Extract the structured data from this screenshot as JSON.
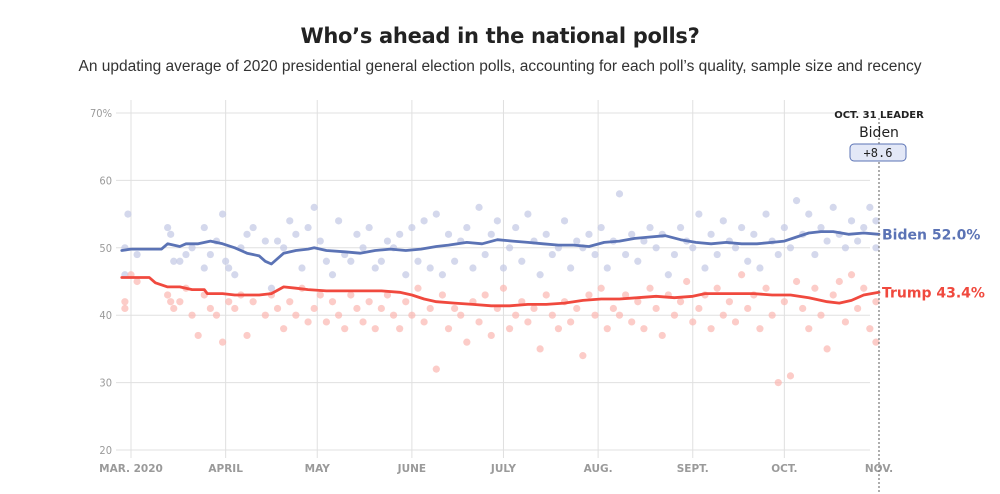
{
  "chart_data": {
    "type": "line",
    "title": "Who’s ahead in the national polls?",
    "subtitle": "An updating average of 2020 presidential general election polls, accounting for each poll’s quality, sample size and recency",
    "xlabel": "",
    "ylabel": "",
    "ylim": [
      20,
      70
    ],
    "grid": true,
    "y_ticks": [
      "70%",
      "60",
      "50",
      "40",
      "30",
      "20"
    ],
    "y_tick_values": [
      70,
      60,
      50,
      40,
      30,
      20
    ],
    "x_ticks": [
      "MAR. 2020",
      "APRIL",
      "MAY",
      "JUNE",
      "JULY",
      "AUG.",
      "SEPT.",
      "OCT.",
      "NOV."
    ],
    "x_tick_days": [
      0,
      31,
      61,
      92,
      122,
      153,
      184,
      214,
      245
    ],
    "x_unit": "days since Mar. 1, 2020",
    "leader": {
      "heading": "OCT. 31 LEADER",
      "name": "Biden",
      "margin": "+8.6"
    },
    "series": [
      {
        "name": "Biden",
        "end_label": "Biden 52.0%",
        "color": "#5b73b5",
        "dot_color": "#c5cbe6",
        "days": [
          -3,
          0,
          10,
          12,
          16,
          18,
          22,
          26,
          30,
          34,
          36,
          38,
          42,
          44,
          46,
          50,
          54,
          58,
          60,
          64,
          70,
          75,
          80,
          85,
          90,
          95,
          100,
          104,
          110,
          115,
          120,
          125,
          130,
          135,
          140,
          145,
          150,
          155,
          160,
          165,
          170,
          175,
          180,
          185,
          190,
          195,
          200,
          205,
          210,
          214,
          218,
          222,
          226,
          230,
          235,
          240,
          245
        ],
        "values": [
          49.6,
          49.8,
          49.8,
          50.6,
          50.2,
          50.6,
          50.6,
          51.0,
          50.6,
          50.0,
          49.6,
          49.2,
          48.8,
          48.0,
          47.6,
          49.2,
          49.6,
          49.8,
          50.0,
          49.6,
          49.4,
          49.2,
          49.6,
          49.8,
          49.6,
          49.8,
          50.2,
          50.4,
          50.8,
          50.6,
          51.2,
          51.0,
          50.8,
          50.6,
          50.4,
          50.4,
          50.2,
          50.8,
          51.0,
          51.4,
          51.6,
          51.8,
          51.2,
          50.8,
          50.6,
          50.8,
          50.6,
          50.6,
          50.8,
          51.0,
          51.6,
          52.2,
          52.4,
          52.4,
          52.0,
          52.2,
          52.0
        ]
      },
      {
        "name": "Trump",
        "end_label": "Trump 43.4%",
        "color": "#f0493e",
        "dot_color": "#fbb6b1",
        "days": [
          -3,
          0,
          6,
          8,
          12,
          16,
          20,
          24,
          25,
          30,
          34,
          38,
          42,
          46,
          50,
          54,
          58,
          64,
          70,
          76,
          82,
          88,
          92,
          96,
          100,
          106,
          112,
          118,
          124,
          130,
          136,
          142,
          148,
          154,
          160,
          166,
          172,
          178,
          184,
          188,
          192,
          198,
          204,
          210,
          216,
          222,
          228,
          232,
          236,
          240,
          245
        ],
        "values": [
          45.6,
          45.6,
          45.6,
          44.8,
          44.2,
          44.2,
          43.8,
          43.8,
          43.2,
          43.2,
          43.0,
          43.0,
          43.0,
          43.2,
          44.2,
          44.0,
          43.8,
          43.6,
          43.6,
          43.6,
          43.6,
          43.4,
          43.0,
          42.4,
          42.0,
          41.8,
          41.6,
          41.4,
          41.4,
          41.6,
          41.6,
          41.8,
          42.2,
          42.4,
          42.4,
          42.6,
          42.8,
          42.6,
          42.8,
          43.2,
          43.2,
          43.2,
          43.2,
          43.0,
          43.0,
          42.6,
          42.0,
          41.8,
          42.2,
          43.0,
          43.4
        ]
      }
    ],
    "polls_biden": [
      [
        -1,
        55
      ],
      [
        -2,
        50
      ],
      [
        -2,
        46
      ],
      [
        2,
        49
      ],
      [
        12,
        53
      ],
      [
        13,
        52
      ],
      [
        14,
        48
      ],
      [
        16,
        48
      ],
      [
        18,
        49
      ],
      [
        20,
        50
      ],
      [
        24,
        53
      ],
      [
        24,
        47
      ],
      [
        26,
        49
      ],
      [
        28,
        51
      ],
      [
        30,
        55
      ],
      [
        31,
        48
      ],
      [
        32,
        47
      ],
      [
        34,
        46
      ],
      [
        36,
        50
      ],
      [
        38,
        52
      ],
      [
        40,
        53
      ],
      [
        44,
        51
      ],
      [
        46,
        44
      ],
      [
        48,
        51
      ],
      [
        50,
        50
      ],
      [
        52,
        54
      ],
      [
        54,
        52
      ],
      [
        56,
        47
      ],
      [
        58,
        53
      ],
      [
        60,
        56
      ],
      [
        62,
        51
      ],
      [
        64,
        48
      ],
      [
        66,
        46
      ],
      [
        68,
        54
      ],
      [
        70,
        49
      ],
      [
        72,
        48
      ],
      [
        74,
        52
      ],
      [
        76,
        50
      ],
      [
        78,
        53
      ],
      [
        80,
        47
      ],
      [
        82,
        48
      ],
      [
        84,
        51
      ],
      [
        86,
        50
      ],
      [
        88,
        52
      ],
      [
        90,
        46
      ],
      [
        92,
        53
      ],
      [
        94,
        48
      ],
      [
        96,
        54
      ],
      [
        98,
        47
      ],
      [
        100,
        55
      ],
      [
        102,
        46
      ],
      [
        104,
        52
      ],
      [
        106,
        48
      ],
      [
        108,
        51
      ],
      [
        110,
        53
      ],
      [
        112,
        47
      ],
      [
        114,
        56
      ],
      [
        116,
        49
      ],
      [
        118,
        52
      ],
      [
        120,
        54
      ],
      [
        122,
        47
      ],
      [
        124,
        50
      ],
      [
        126,
        53
      ],
      [
        128,
        48
      ],
      [
        130,
        55
      ],
      [
        132,
        51
      ],
      [
        134,
        46
      ],
      [
        136,
        52
      ],
      [
        138,
        49
      ],
      [
        140,
        50
      ],
      [
        142,
        54
      ],
      [
        144,
        47
      ],
      [
        146,
        51
      ],
      [
        148,
        50
      ],
      [
        150,
        52
      ],
      [
        152,
        49
      ],
      [
        154,
        53
      ],
      [
        156,
        47
      ],
      [
        158,
        51
      ],
      [
        160,
        58
      ],
      [
        162,
        49
      ],
      [
        164,
        52
      ],
      [
        166,
        48
      ],
      [
        168,
        51
      ],
      [
        170,
        53
      ],
      [
        172,
        50
      ],
      [
        174,
        52
      ],
      [
        176,
        46
      ],
      [
        178,
        49
      ],
      [
        180,
        53
      ],
      [
        182,
        51
      ],
      [
        184,
        50
      ],
      [
        186,
        55
      ],
      [
        188,
        47
      ],
      [
        190,
        52
      ],
      [
        192,
        49
      ],
      [
        194,
        54
      ],
      [
        196,
        51
      ],
      [
        198,
        50
      ],
      [
        200,
        53
      ],
      [
        202,
        48
      ],
      [
        204,
        52
      ],
      [
        206,
        47
      ],
      [
        208,
        55
      ],
      [
        210,
        51
      ],
      [
        212,
        49
      ],
      [
        214,
        53
      ],
      [
        216,
        50
      ],
      [
        218,
        57
      ],
      [
        220,
        52
      ],
      [
        222,
        55
      ],
      [
        224,
        49
      ],
      [
        226,
        53
      ],
      [
        228,
        51
      ],
      [
        230,
        56
      ],
      [
        232,
        52
      ],
      [
        234,
        50
      ],
      [
        236,
        54
      ],
      [
        238,
        51
      ],
      [
        240,
        53
      ],
      [
        242,
        56
      ],
      [
        244,
        50
      ],
      [
        244,
        54
      ]
    ],
    "polls_trump": [
      [
        -2,
        42
      ],
      [
        -2,
        41
      ],
      [
        0,
        46
      ],
      [
        2,
        45
      ],
      [
        12,
        43
      ],
      [
        13,
        42
      ],
      [
        14,
        41
      ],
      [
        16,
        42
      ],
      [
        18,
        44
      ],
      [
        20,
        40
      ],
      [
        22,
        37
      ],
      [
        24,
        43
      ],
      [
        26,
        41
      ],
      [
        28,
        40
      ],
      [
        30,
        36
      ],
      [
        32,
        42
      ],
      [
        34,
        41
      ],
      [
        36,
        43
      ],
      [
        38,
        37
      ],
      [
        40,
        42
      ],
      [
        44,
        40
      ],
      [
        46,
        43
      ],
      [
        48,
        41
      ],
      [
        50,
        38
      ],
      [
        52,
        42
      ],
      [
        54,
        40
      ],
      [
        56,
        44
      ],
      [
        58,
        39
      ],
      [
        60,
        41
      ],
      [
        62,
        43
      ],
      [
        64,
        39
      ],
      [
        66,
        42
      ],
      [
        68,
        40
      ],
      [
        70,
        38
      ],
      [
        72,
        43
      ],
      [
        74,
        41
      ],
      [
        76,
        39
      ],
      [
        78,
        42
      ],
      [
        80,
        38
      ],
      [
        82,
        41
      ],
      [
        84,
        43
      ],
      [
        86,
        40
      ],
      [
        88,
        38
      ],
      [
        90,
        42
      ],
      [
        92,
        40
      ],
      [
        94,
        44
      ],
      [
        96,
        39
      ],
      [
        98,
        41
      ],
      [
        100,
        32
      ],
      [
        102,
        43
      ],
      [
        104,
        38
      ],
      [
        106,
        41
      ],
      [
        108,
        40
      ],
      [
        110,
        36
      ],
      [
        112,
        42
      ],
      [
        114,
        39
      ],
      [
        116,
        43
      ],
      [
        118,
        37
      ],
      [
        120,
        41
      ],
      [
        122,
        44
      ],
      [
        124,
        38
      ],
      [
        126,
        40
      ],
      [
        128,
        42
      ],
      [
        130,
        39
      ],
      [
        132,
        41
      ],
      [
        134,
        35
      ],
      [
        136,
        43
      ],
      [
        138,
        40
      ],
      [
        140,
        38
      ],
      [
        142,
        42
      ],
      [
        144,
        39
      ],
      [
        146,
        41
      ],
      [
        148,
        34
      ],
      [
        150,
        43
      ],
      [
        152,
        40
      ],
      [
        154,
        44
      ],
      [
        156,
        38
      ],
      [
        158,
        41
      ],
      [
        160,
        40
      ],
      [
        162,
        43
      ],
      [
        164,
        39
      ],
      [
        166,
        42
      ],
      [
        168,
        38
      ],
      [
        170,
        44
      ],
      [
        172,
        41
      ],
      [
        174,
        37
      ],
      [
        176,
        43
      ],
      [
        178,
        40
      ],
      [
        180,
        42
      ],
      [
        182,
        45
      ],
      [
        184,
        39
      ],
      [
        186,
        41
      ],
      [
        188,
        43
      ],
      [
        190,
        38
      ],
      [
        192,
        44
      ],
      [
        194,
        40
      ],
      [
        196,
        42
      ],
      [
        198,
        39
      ],
      [
        200,
        46
      ],
      [
        202,
        41
      ],
      [
        204,
        43
      ],
      [
        206,
        38
      ],
      [
        208,
        44
      ],
      [
        210,
        40
      ],
      [
        212,
        30
      ],
      [
        214,
        42
      ],
      [
        216,
        31
      ],
      [
        218,
        45
      ],
      [
        220,
        41
      ],
      [
        222,
        38
      ],
      [
        224,
        44
      ],
      [
        226,
        40
      ],
      [
        228,
        35
      ],
      [
        230,
        43
      ],
      [
        232,
        45
      ],
      [
        234,
        39
      ],
      [
        236,
        46
      ],
      [
        238,
        41
      ],
      [
        240,
        44
      ],
      [
        242,
        38
      ],
      [
        244,
        36
      ],
      [
        244,
        42
      ]
    ]
  }
}
